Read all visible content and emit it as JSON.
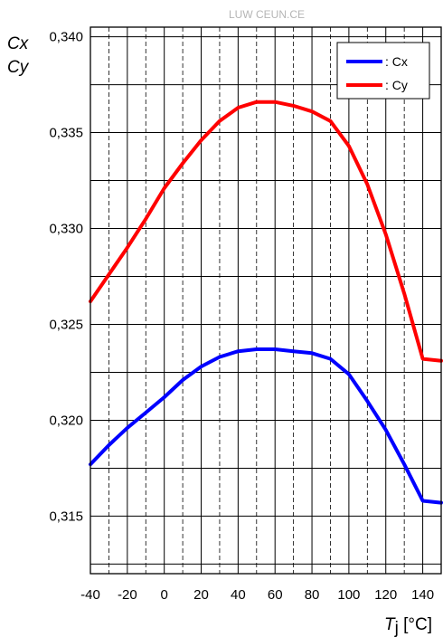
{
  "watermark": "LUW CEUN.CE",
  "chart_data": {
    "type": "line",
    "ylabel_lines": [
      "Cx",
      "Cy"
    ],
    "xlabel_symbol": "T",
    "xlabel_subscript": "j",
    "xlabel_unit": " [°C]",
    "xlim": [
      -40,
      150
    ],
    "ylim": [
      0.312,
      0.3405
    ],
    "x_ticks": [
      -40,
      -20,
      0,
      20,
      40,
      60,
      80,
      100,
      120,
      140
    ],
    "x_tick_labels": [
      "-40",
      "-20",
      "0",
      "20",
      "40",
      "60",
      "80",
      "100",
      "120",
      "140"
    ],
    "y_ticks": [
      0.315,
      0.32,
      0.325,
      0.33,
      0.335,
      0.34
    ],
    "y_tick_labels": [
      "0,315",
      "0,320",
      "0,325",
      "0,330",
      "0,335",
      "0,340"
    ],
    "grid": true,
    "legend_position": "top-right",
    "series": [
      {
        "name": ": Cx",
        "color": "#0000ff",
        "x": [
          -40,
          -30,
          -20,
          -10,
          0,
          10,
          20,
          30,
          40,
          50,
          60,
          70,
          80,
          90,
          100,
          110,
          120,
          130,
          140,
          150
        ],
        "y": [
          0.3177,
          0.3187,
          0.3196,
          0.3204,
          0.3212,
          0.3221,
          0.3228,
          0.3233,
          0.3236,
          0.3237,
          0.3237,
          0.3236,
          0.3235,
          0.3232,
          0.3224,
          0.321,
          0.3195,
          0.3177,
          0.3158,
          0.3157
        ]
      },
      {
        "name": ": Cy",
        "color": "#ff0000",
        "x": [
          -40,
          -30,
          -20,
          -10,
          0,
          10,
          20,
          30,
          40,
          50,
          60,
          70,
          80,
          90,
          100,
          110,
          120,
          130,
          140,
          150
        ],
        "y": [
          0.3262,
          0.3276,
          0.329,
          0.3305,
          0.3321,
          0.3334,
          0.3346,
          0.3356,
          0.3363,
          0.3366,
          0.3366,
          0.3364,
          0.3361,
          0.3356,
          0.3343,
          0.3323,
          0.3297,
          0.3266,
          0.3232,
          0.3231
        ]
      }
    ]
  }
}
